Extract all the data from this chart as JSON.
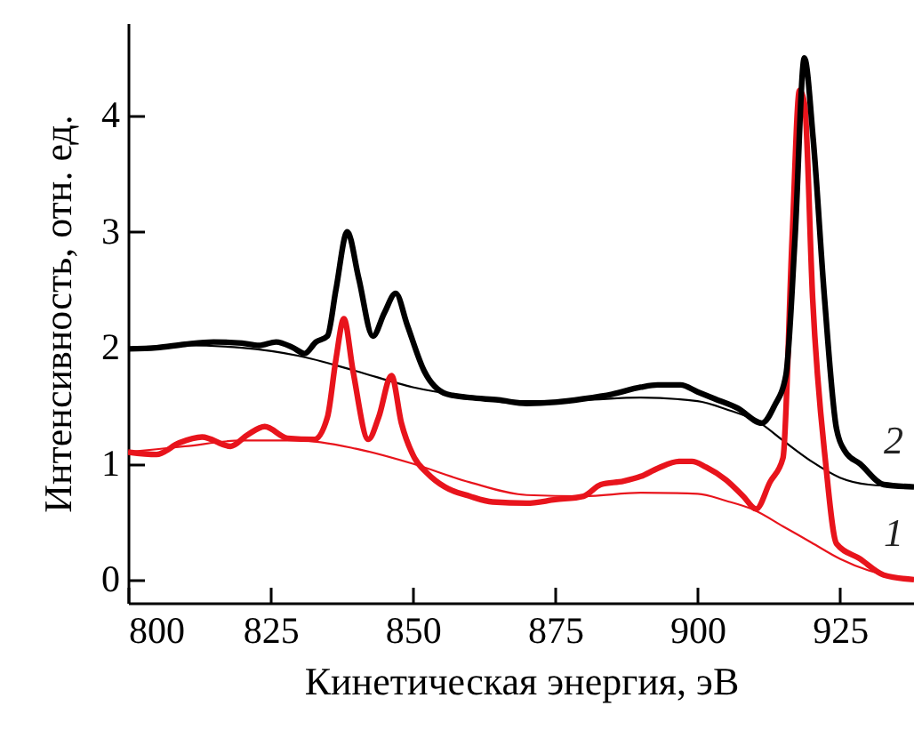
{
  "chart_data": {
    "type": "line",
    "xlabel": "Кинетическая энергия, эВ",
    "ylabel": "Интенсивность, отн. ед.",
    "xlim": [
      800,
      938
    ],
    "ylim": [
      -0.2,
      4.8
    ],
    "xticks": [
      800,
      825,
      850,
      875,
      900,
      925
    ],
    "yticks": [
      0,
      1,
      2,
      3,
      4
    ],
    "grid": false,
    "series": [
      {
        "name": "2",
        "color": "#000000",
        "x": [
          800,
          805,
          810,
          815,
          820,
          823,
          826,
          829,
          831,
          833,
          835,
          836.5,
          838.5,
          840.5,
          843,
          845,
          847,
          849,
          852,
          856,
          860,
          865,
          870,
          875,
          880,
          885,
          890,
          893,
          897,
          900,
          903,
          907,
          911.3,
          913.5,
          915.5,
          917.1,
          918.75,
          920.3,
          922.3,
          924.4,
          926,
          928.5,
          932.7,
          938
        ],
        "values": [
          1.99,
          2.0,
          2.03,
          2.05,
          2.04,
          2.02,
          2.05,
          2.0,
          1.95,
          2.05,
          2.1,
          2.5,
          3.0,
          2.6,
          2.1,
          2.3,
          2.47,
          2.2,
          1.8,
          1.6,
          1.57,
          1.55,
          1.52,
          1.53,
          1.56,
          1.6,
          1.66,
          1.68,
          1.68,
          1.62,
          1.56,
          1.48,
          1.35,
          1.5,
          1.76,
          2.94,
          4.5,
          3.8,
          2.42,
          1.3,
          1.1,
          1.0,
          0.82,
          0.8
        ]
      },
      {
        "name": "1",
        "color": "#e8141c",
        "x": [
          800,
          805,
          809,
          813,
          818,
          821,
          824,
          828,
          832.7,
          835,
          836.5,
          837.9,
          839.5,
          842.2,
          844,
          846.25,
          848,
          850.3,
          852.5,
          855.6,
          860,
          864,
          870,
          875,
          880,
          883,
          887,
          890,
          893,
          896.8,
          899,
          901.5,
          905,
          908,
          910.3,
          912.7,
          915,
          916.6,
          917.9,
          918.8,
          920.2,
          922.5,
          924.4,
          928.5,
          932.7,
          938
        ],
        "values": [
          1.1,
          1.08,
          1.18,
          1.23,
          1.15,
          1.25,
          1.32,
          1.22,
          1.21,
          1.4,
          1.9,
          2.25,
          1.8,
          1.21,
          1.4,
          1.76,
          1.35,
          1.05,
          0.92,
          0.8,
          0.72,
          0.67,
          0.66,
          0.69,
          0.72,
          0.82,
          0.85,
          0.89,
          0.96,
          1.02,
          1.02,
          0.97,
          0.86,
          0.72,
          0.61,
          0.84,
          1.05,
          2.94,
          4.22,
          4.1,
          2.43,
          1.0,
          0.31,
          0.18,
          0.04,
          0.0
        ]
      },
      {
        "color": "#000000",
        "x": [
          800,
          810,
          820,
          830,
          840,
          850,
          860,
          870,
          880,
          890,
          900,
          905,
          911,
          915,
          920,
          925,
          930,
          938
        ],
        "values": [
          2.0,
          2.02,
          2.0,
          1.93,
          1.8,
          1.66,
          1.58,
          1.54,
          1.55,
          1.57,
          1.54,
          1.47,
          1.35,
          1.2,
          1.02,
          0.88,
          0.82,
          0.8
        ]
      },
      {
        "color": "#e8141c",
        "x": [
          800,
          810,
          820,
          830,
          840,
          850,
          860,
          870,
          880,
          890,
          900,
          905,
          910,
          915,
          920,
          925,
          930,
          938
        ],
        "values": [
          1.1,
          1.15,
          1.2,
          1.2,
          1.13,
          1.0,
          0.84,
          0.73,
          0.72,
          0.75,
          0.74,
          0.68,
          0.6,
          0.46,
          0.32,
          0.18,
          0.08,
          0.0
        ]
      }
    ]
  }
}
